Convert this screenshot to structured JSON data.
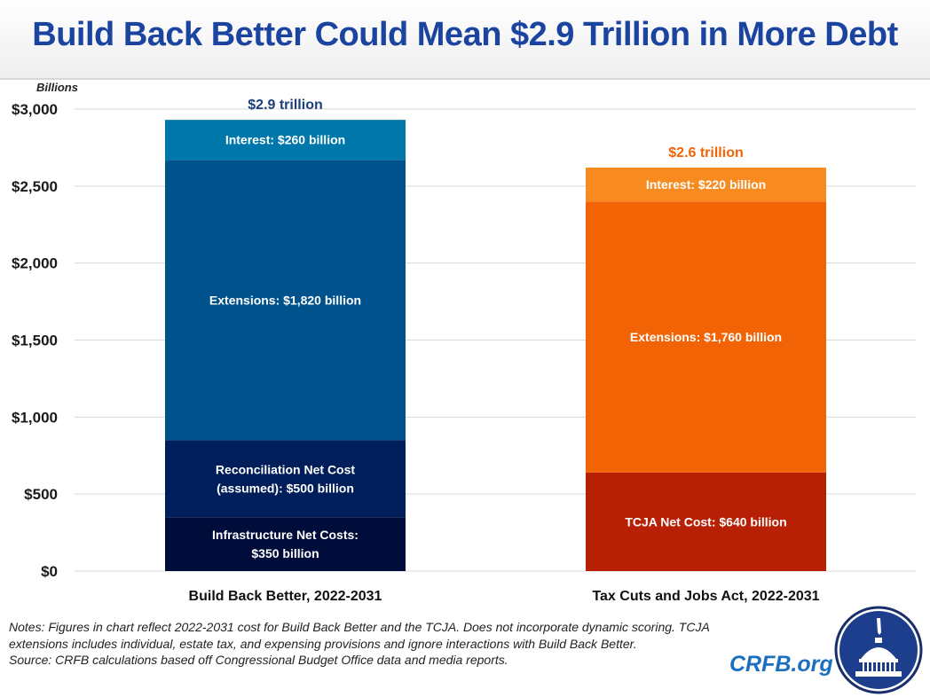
{
  "header": {
    "title": "Build Back Better Could Mean $2.9 Trillion in More Debt"
  },
  "notes": {
    "lines": [
      "Notes: Figures in chart reflect 2022-2031 cost for Build Back Better and the TCJA. Does not incorporate dynamic scoring. TCJA extensions includes individual, estate tax, and expensing provisions and ignore interactions with Build Back Better.",
      "Source: CRFB calculations based off Congressional Budget Office data and media reports."
    ]
  },
  "brand": {
    "text": "CRFB.org",
    "logo_icon": "capitol-dome-seal-icon"
  },
  "chart_data": {
    "type": "bar",
    "stacked": true,
    "title": "Build Back Better Could Mean $2.9 Trillion in More Debt",
    "ylabel": "Billions",
    "xlabel": "",
    "ylim": [
      0,
      3000
    ],
    "yticks": [
      0,
      500,
      1000,
      1500,
      2000,
      2500,
      3000
    ],
    "ytick_labels": [
      "$0",
      "$500",
      "$1,000",
      "$1,500",
      "$2,000",
      "$2,500",
      "$3,000"
    ],
    "grid": true,
    "categories": [
      "Build Back Better, 2022-2031",
      "Tax Cuts and Jobs Act, 2022-2031"
    ],
    "totals": [
      {
        "label": "$2.9 trillion",
        "value": 2930,
        "color": "#1a3f7a"
      },
      {
        "label": "$2.6 trillion",
        "value": 2620,
        "color": "#f26306"
      }
    ],
    "bars": [
      {
        "category": "Build Back Better, 2022-2031",
        "segments": [
          {
            "name": "Infrastructure Net Costs",
            "value": 350,
            "label": [
              "Infrastructure Net Costs:",
              "$350 billion"
            ],
            "color": "#000d3a"
          },
          {
            "name": "Reconciliation Net Cost (assumed)",
            "value": 500,
            "label": [
              "Reconciliation Net Cost",
              "(assumed): $500 billion"
            ],
            "color": "#001f5a"
          },
          {
            "name": "Extensions",
            "value": 1820,
            "label": [
              "Extensions: $1,820 billion"
            ],
            "color": "#00528c"
          },
          {
            "name": "Interest",
            "value": 260,
            "label": [
              "Interest: $260 billion"
            ],
            "color": "#0077aa"
          }
        ]
      },
      {
        "category": "Tax Cuts and Jobs Act, 2022-2031",
        "segments": [
          {
            "name": "TCJA Net Cost",
            "value": 640,
            "label": [
              "TCJA Net Cost: $640 billion"
            ],
            "color": "#b82005"
          },
          {
            "name": "Extensions",
            "value": 1760,
            "label": [
              "Extensions: $1,760 billion"
            ],
            "color": "#f26306"
          },
          {
            "name": "Interest",
            "value": 220,
            "label": [
              "Interest: $220 billion"
            ],
            "color": "#f78b1f"
          }
        ]
      }
    ]
  }
}
